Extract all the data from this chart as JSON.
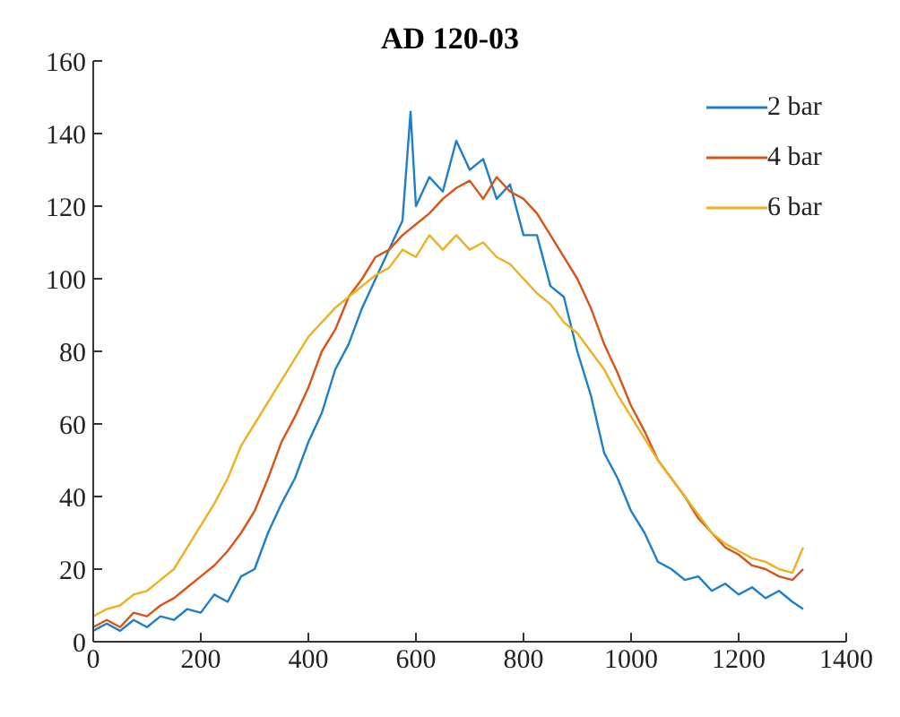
{
  "chart_data": {
    "type": "line",
    "title": "AD 120-03",
    "xlim": [
      0,
      1400
    ],
    "xticks": [
      0,
      200,
      400,
      600,
      800,
      1000,
      1200,
      1400
    ],
    "ylim": [
      0,
      160
    ],
    "yticks": [
      0,
      20,
      40,
      60,
      80,
      100,
      120,
      140,
      160
    ],
    "grid": false,
    "legend": "top right",
    "marker": "none",
    "line_style": "solid",
    "series": [
      {
        "name": "2 bar",
        "color": "#1e7fc8",
        "x": [
          0,
          25,
          50,
          75,
          100,
          125,
          150,
          175,
          200,
          225,
          250,
          275,
          300,
          325,
          350,
          375,
          400,
          425,
          450,
          475,
          500,
          525,
          550,
          575,
          590,
          600,
          625,
          650,
          675,
          700,
          725,
          750,
          775,
          800,
          825,
          850,
          875,
          900,
          925,
          950,
          975,
          1000,
          1025,
          1050,
          1075,
          1100,
          1125,
          1150,
          1175,
          1200,
          1225,
          1250,
          1275,
          1300,
          1320
        ],
        "values": [
          3,
          5,
          3,
          6,
          4,
          7,
          6,
          9,
          8,
          13,
          11,
          18,
          20,
          30,
          38,
          45,
          55,
          63,
          75,
          82,
          92,
          100,
          108,
          116,
          146,
          120,
          128,
          124,
          138,
          130,
          133,
          122,
          126,
          112,
          112,
          98,
          95,
          80,
          68,
          52,
          45,
          36,
          30,
          22,
          20,
          17,
          18,
          14,
          16,
          13,
          15,
          12,
          14,
          11,
          9
        ]
      },
      {
        "name": "4 bar",
        "color": "#d95319",
        "x": [
          0,
          25,
          50,
          75,
          100,
          125,
          150,
          175,
          200,
          225,
          250,
          275,
          300,
          325,
          350,
          375,
          400,
          425,
          450,
          475,
          500,
          525,
          550,
          575,
          600,
          625,
          650,
          675,
          700,
          725,
          750,
          775,
          800,
          825,
          850,
          875,
          900,
          925,
          950,
          975,
          1000,
          1025,
          1050,
          1075,
          1100,
          1125,
          1150,
          1175,
          1200,
          1225,
          1250,
          1275,
          1300,
          1320
        ],
        "values": [
          4,
          6,
          4,
          8,
          7,
          10,
          12,
          15,
          18,
          21,
          25,
          30,
          36,
          45,
          55,
          62,
          70,
          80,
          86,
          95,
          100,
          106,
          108,
          112,
          115,
          118,
          122,
          125,
          127,
          122,
          128,
          124,
          122,
          118,
          112,
          106,
          100,
          92,
          82,
          74,
          65,
          58,
          50,
          45,
          40,
          34,
          30,
          26,
          24,
          21,
          20,
          18,
          17,
          20
        ]
      },
      {
        "name": "6 bar",
        "color": "#edb120",
        "x": [
          0,
          25,
          50,
          75,
          100,
          125,
          150,
          175,
          200,
          225,
          250,
          275,
          300,
          325,
          350,
          375,
          400,
          425,
          450,
          475,
          500,
          525,
          550,
          575,
          600,
          625,
          650,
          675,
          700,
          725,
          750,
          775,
          800,
          825,
          850,
          875,
          900,
          925,
          950,
          975,
          1000,
          1025,
          1050,
          1075,
          1100,
          1125,
          1150,
          1175,
          1200,
          1225,
          1250,
          1275,
          1300,
          1320
        ],
        "values": [
          7,
          9,
          10,
          13,
          14,
          17,
          20,
          26,
          32,
          38,
          45,
          54,
          60,
          66,
          72,
          78,
          84,
          88,
          92,
          95,
          98,
          101,
          103,
          108,
          106,
          112,
          108,
          112,
          108,
          110,
          106,
          104,
          100,
          96,
          93,
          88,
          85,
          80,
          75,
          68,
          62,
          56,
          50,
          45,
          40,
          35,
          30,
          27,
          25,
          23,
          22,
          20,
          19,
          26
        ]
      }
    ]
  }
}
